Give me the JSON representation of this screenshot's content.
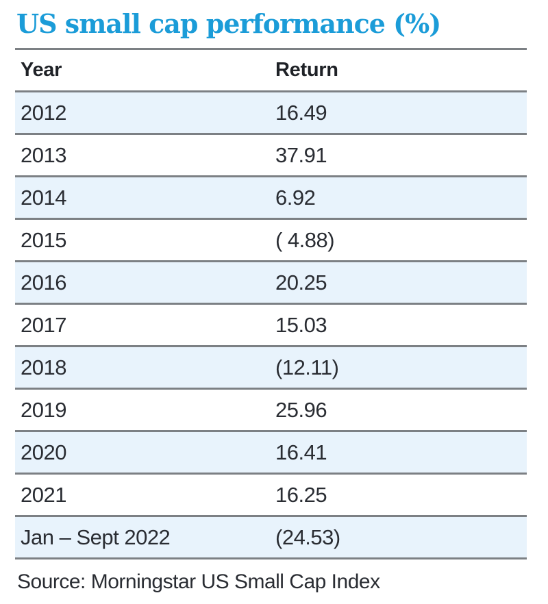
{
  "title": "US small cap performance (%)",
  "table": {
    "columns": {
      "year": "Year",
      "return": "Return"
    },
    "rows": [
      {
        "year": "2012",
        "return": "16.49"
      },
      {
        "year": "2013",
        "return": "37.91"
      },
      {
        "year": "2014",
        "return": "6.92"
      },
      {
        "year": "2015",
        "return": "( 4.88)"
      },
      {
        "year": "2016",
        "return": "20.25"
      },
      {
        "year": "2017",
        "return": "15.03"
      },
      {
        "year": "2018",
        "return": "(12.11)"
      },
      {
        "year": "2019",
        "return": "25.96"
      },
      {
        "year": "2020",
        "return": "16.41"
      },
      {
        "year": "2021",
        "return": "16.25"
      },
      {
        "year": "Jan – Sept 2022",
        "return": "(24.53)"
      }
    ]
  },
  "source": "Source: Morningstar US Small Cap Index",
  "colors": {
    "title_blue": "#1b9cd8",
    "stripe_blue": "#e8f3fc",
    "rule_gray": "#7c8084",
    "text_dark": "#2a2d33"
  },
  "chart_data": {
    "type": "table",
    "title": "US small cap performance (%)",
    "columns": [
      "Year",
      "Return"
    ],
    "categories": [
      "2012",
      "2013",
      "2014",
      "2015",
      "2016",
      "2017",
      "2018",
      "2019",
      "2020",
      "2021",
      "Jan – Sept 2022"
    ],
    "values": [
      16.49,
      37.91,
      6.92,
      -4.88,
      20.25,
      15.03,
      -12.11,
      25.96,
      16.41,
      16.25,
      -24.53
    ],
    "value_display": [
      "16.49",
      "37.91",
      "6.92",
      "( 4.88)",
      "20.25",
      "15.03",
      "(12.11)",
      "25.96",
      "16.41",
      "16.25",
      "(24.53)"
    ],
    "units": "%",
    "negative_format": "parentheses",
    "source": "Source: Morningstar US Small Cap Index"
  }
}
